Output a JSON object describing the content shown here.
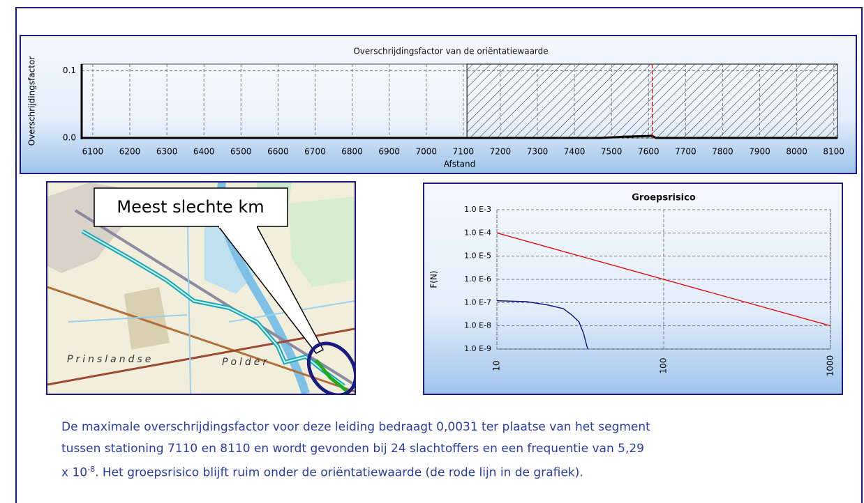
{
  "chart_data": [
    {
      "type": "line",
      "title": "Overschrijdingsfactor van de oriëntatiewaarde",
      "xlabel": "Afstand",
      "ylabel": "Overschrijdingsfactor",
      "x": [
        6070,
        7470,
        7540,
        7610,
        7620,
        8110
      ],
      "values": [
        0,
        0,
        0.002,
        0.0031,
        0,
        0
      ],
      "color": "#000000",
      "xlim": [
        6070,
        8110
      ],
      "ylim": [
        0,
        0.11
      ],
      "xticks": [
        6100,
        6200,
        6300,
        6400,
        6500,
        6600,
        6700,
        6800,
        6900,
        7000,
        7100,
        7200,
        7300,
        7400,
        7500,
        7600,
        7700,
        7800,
        7900,
        8000,
        8100
      ],
      "yticks": [
        {
          "value": 0,
          "label": "0.0"
        },
        0.1
      ],
      "grid": true,
      "highlight_range": [
        7110,
        8110
      ],
      "threshold_x": 7610,
      "threshold_color": "#e00000"
    },
    {
      "type": "line",
      "title": "Groepsrisico",
      "ylabel": "F(N)",
      "xscale": "log",
      "yscale": "log",
      "xlim": [
        10,
        1000
      ],
      "ylim": [
        1e-09,
        0.001
      ],
      "xticks": [
        10,
        100,
        1000
      ],
      "yticks": [
        {
          "value": 0.001,
          "label": "1.0 E-3"
        },
        {
          "value": 0.0001,
          "label": "1.0 E-4"
        },
        {
          "value": 1e-05,
          "label": "1.0 E-5"
        },
        {
          "value": 1e-06,
          "label": "1.0 E-6"
        },
        {
          "value": 1e-07,
          "label": "1.0 E-7"
        },
        {
          "value": 1e-08,
          "label": "1.0 E-8"
        },
        {
          "value": 1e-09,
          "label": "1.0 E-9"
        }
      ],
      "grid": true,
      "series": [
        {
          "color": "#e00000",
          "x": [
            10,
            1000
          ],
          "values": [
            0.0001,
            1e-08
          ]
        },
        {
          "color": "#00008b",
          "x": [
            10,
            15,
            20,
            25,
            28,
            31,
            33,
            35
          ],
          "values": [
            1.2e-07,
            1.1e-07,
            8e-08,
            5.5e-08,
            3e-08,
            1.5e-08,
            5e-09,
            1e-09
          ]
        }
      ]
    }
  ],
  "map": {
    "callout": "Meest slechte km",
    "labels": [
      "Prinslandse",
      "Polder"
    ]
  },
  "paragraph": {
    "lines": [
      "De maximale overschrijdingsfactor voor deze leiding bedraagt 0,0031 ter plaatse van het segment",
      "tussen stationing 7110 en 8110 en wordt gevonden bij 24 slachtoffers en een frequentie van 5,29"
    ],
    "last_line": {
      "before": "x 10",
      "superscript": "-8",
      "after": ". Het groepsrisico blijft ruim onder de oriëntatiewaarde (de rode lijn in de grafiek)."
    }
  }
}
